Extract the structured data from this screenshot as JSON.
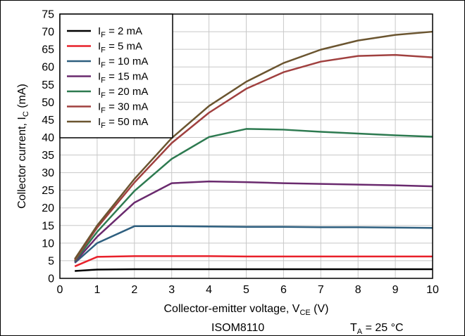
{
  "chart_data": {
    "type": "line",
    "xlabel": {
      "main": "Collector-emitter voltage, V",
      "sub": "CE",
      "unit": " (V)"
    },
    "ylabel": {
      "main": "Collector current, I",
      "sub": "C",
      "unit": " (mA)"
    },
    "xlim": [
      0,
      10
    ],
    "ylim": [
      0,
      75
    ],
    "x_ticks": [
      "0",
      "1",
      "2",
      "3",
      "4",
      "5",
      "6",
      "7",
      "8",
      "9",
      "10"
    ],
    "y_ticks": [
      "0",
      "5",
      "10",
      "15",
      "20",
      "25",
      "30",
      "35",
      "40",
      "45",
      "50",
      "55",
      "60",
      "65",
      "70",
      "75"
    ],
    "grid": true,
    "legend_position": "top-left",
    "x": [
      0.4,
      1,
      2,
      3,
      4,
      5,
      6,
      7,
      8,
      9,
      10
    ],
    "series": [
      {
        "prefix": "I",
        "sub": "F",
        "suffix": " = 2 mA",
        "color": "#000000",
        "values": [
          2.1,
          2.5,
          2.6,
          2.6,
          2.6,
          2.6,
          2.6,
          2.6,
          2.6,
          2.6,
          2.6
        ]
      },
      {
        "prefix": "I",
        "sub": "F",
        "suffix": " = 5 mA",
        "color": "#e8202a",
        "values": [
          3.4,
          6.1,
          6.3,
          6.3,
          6.3,
          6.2,
          6.2,
          6.2,
          6.2,
          6.2,
          6.2
        ]
      },
      {
        "prefix": "I",
        "sub": "F",
        "suffix": " = 10 mA",
        "color": "#2e5f7f",
        "values": [
          4.4,
          10.0,
          14.8,
          14.8,
          14.7,
          14.6,
          14.6,
          14.5,
          14.5,
          14.4,
          14.3
        ]
      },
      {
        "prefix": "I",
        "sub": "F",
        "suffix": " = 15 mA",
        "color": "#6a2a6e",
        "values": [
          4.6,
          11.8,
          21.5,
          27.0,
          27.5,
          27.3,
          27.0,
          26.8,
          26.6,
          26.4,
          26.1
        ]
      },
      {
        "prefix": "I",
        "sub": "F",
        "suffix": " = 20 mA",
        "color": "#2d7a50",
        "values": [
          4.9,
          13.2,
          24.8,
          33.9,
          40.1,
          42.4,
          42.2,
          41.6,
          41.1,
          40.6,
          40.2
        ]
      },
      {
        "prefix": "I",
        "sub": "F",
        "suffix": " = 30 mA",
        "color": "#a0403f",
        "values": [
          5.2,
          14.4,
          27.2,
          38.4,
          47.0,
          53.8,
          58.5,
          61.5,
          63.1,
          63.4,
          62.7
        ]
      },
      {
        "prefix": "I",
        "sub": "F",
        "suffix": " = 50 mA",
        "color": "#6b5530",
        "values": [
          5.5,
          15.0,
          28.2,
          39.8,
          48.9,
          55.8,
          61.1,
          64.9,
          67.5,
          69.1,
          70.0
        ]
      }
    ]
  },
  "footer": {
    "part": "ISOM8110",
    "temp_prefix": "T",
    "temp_sub": "A",
    "temp_suffix": " = 25 °C"
  }
}
